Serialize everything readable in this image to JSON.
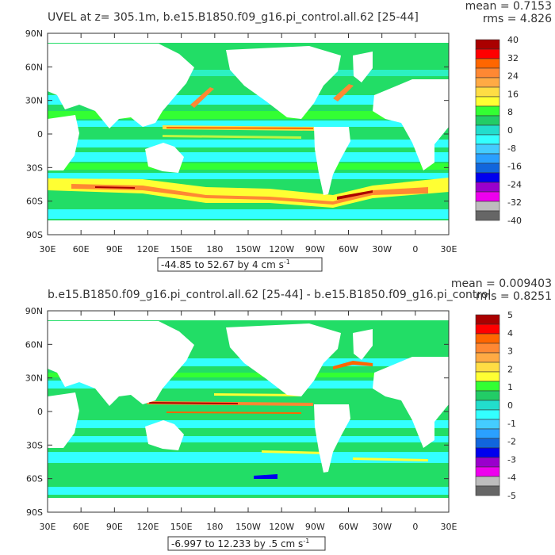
{
  "palette": [
    "#ffffff",
    "#666666",
    "#bdbdbd",
    "#ee00ee",
    "#9a00cc",
    "#0000ee",
    "#1166dd",
    "#2aa0ff",
    "#44ccff",
    "#33ffff",
    "#22ddcc",
    "#22cc66",
    "#33ff33",
    "#ffff33",
    "#ffdd44",
    "#ffaa44",
    "#ff8833",
    "#ff6600",
    "#ff0000",
    "#aa0000"
  ],
  "chart_data": [
    {
      "type": "heatmap",
      "title": "UVEL at z= 305.1m, b.e15.B1850.f09_g16.pi_control.all.62 [25-44]",
      "stats": {
        "mean": "mean = 0.7153",
        "rms": "rms = 4.826"
      },
      "range_note": "-44.85 to 52.67 by 4 cm s",
      "range_sup": "-1",
      "x_ticks": [
        "30E",
        "60E",
        "90E",
        "120E",
        "150E",
        "180",
        "150W",
        "120W",
        "90W",
        "60W",
        "30W",
        "0",
        "30E"
      ],
      "y_ticks": [
        "90N",
        "60N",
        "30N",
        "0",
        "30S",
        "60S",
        "90S"
      ],
      "colorbar_labels": [
        "40",
        "32",
        "24",
        "16",
        "8",
        "0",
        "-8",
        "-16",
        "-24",
        "-32",
        "-40"
      ]
    },
    {
      "type": "heatmap",
      "title": "b.e15.B1850.f09_g16.pi_control.all.62 [25-44] - b.e15.B1850.f09_g16.pi_control",
      "stats": {
        "mean": "mean = 0.009403",
        "rms": "rms = 0.8251"
      },
      "range_note": "-6.997 to 12.233 by .5 cm s",
      "range_sup": "-1",
      "x_ticks": [
        "30E",
        "60E",
        "90E",
        "120E",
        "150E",
        "180",
        "150W",
        "120W",
        "90W",
        "60W",
        "30W",
        "0",
        "30E"
      ],
      "y_ticks": [
        "90N",
        "60N",
        "30N",
        "0",
        "30S",
        "60S",
        "90S"
      ],
      "colorbar_labels": [
        "5",
        "4",
        "3",
        "2",
        "1",
        "0",
        "-1",
        "-2",
        "-3",
        "-4",
        "-5"
      ]
    }
  ]
}
